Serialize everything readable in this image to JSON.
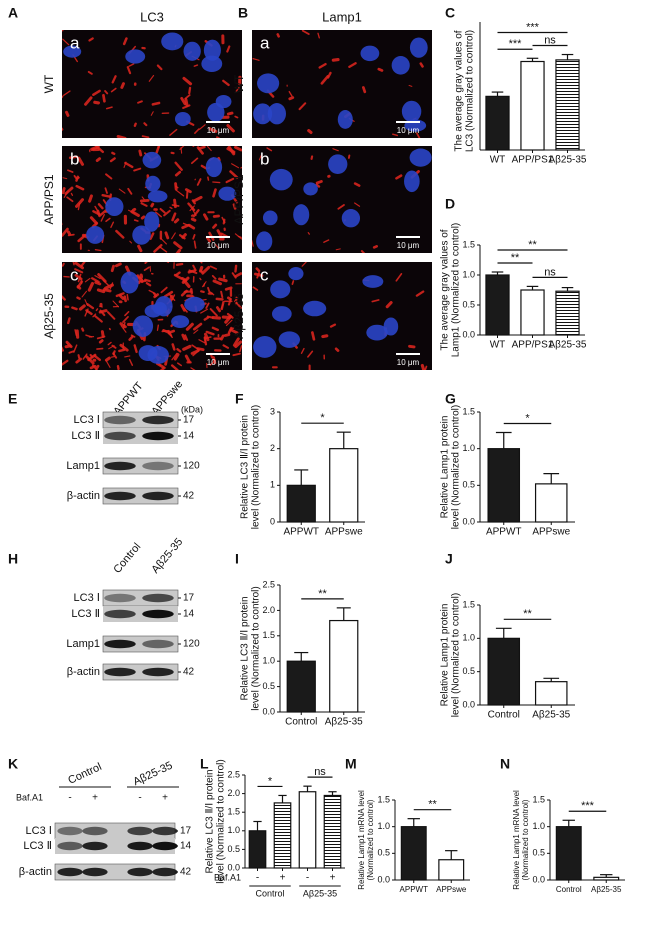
{
  "figure": {
    "micrographs": [
      {
        "panel": "A",
        "title": "LC3",
        "frames": [
          {
            "letter": "a",
            "condition": "WT",
            "scale": "10 μm"
          },
          {
            "letter": "b",
            "condition": "APP/PS1",
            "scale": "10 μm"
          },
          {
            "letter": "c",
            "condition": "Aβ25-35",
            "scale": "10 μm"
          }
        ]
      },
      {
        "panel": "B",
        "title": "Lamp1",
        "frames": [
          {
            "letter": "a",
            "condition": "WT",
            "scale": "10 μm"
          },
          {
            "letter": "b",
            "condition": "APP/PS1",
            "scale": "10 μm"
          },
          {
            "letter": "c",
            "condition": "Aβ25-35",
            "scale": "10 μm"
          }
        ]
      }
    ],
    "blots": [
      {
        "panel": "E",
        "lanes": [
          "APPWT",
          "APPswe"
        ],
        "unit": "(kDa)",
        "bands": [
          {
            "name": "LC3 Ⅰ",
            "kda": 17
          },
          {
            "name": "LC3 Ⅱ",
            "kda": 14
          },
          {
            "name": "Lamp1",
            "kda": 120
          },
          {
            "name": "β-actin",
            "kda": 42
          }
        ]
      },
      {
        "panel": "H",
        "lanes": [
          "Control",
          "Aβ25-35"
        ],
        "bands": [
          {
            "name": "LC3 Ⅰ",
            "kda": 17
          },
          {
            "name": "LC3 Ⅱ",
            "kda": 14
          },
          {
            "name": "Lamp1",
            "kda": 120
          },
          {
            "name": "β-actin",
            "kda": 42
          }
        ]
      },
      {
        "panel": "K",
        "groups": [
          "Control",
          "Aβ25-35"
        ],
        "treatment": "Baf.A1",
        "lanes": [
          "-",
          "+",
          "-",
          "+"
        ],
        "bands": [
          {
            "name": "LC3 Ⅰ",
            "kda": 17
          },
          {
            "name": "LC3 Ⅱ",
            "kda": 14
          },
          {
            "name": "β-actin",
            "kda": 42
          }
        ]
      }
    ]
  },
  "chart_data": [
    {
      "type": "bar",
      "panel": "C",
      "ylabel": [
        "The average gray values of",
        "LC3 (Normalized to control)"
      ],
      "categories": [
        "WT",
        "APP/PS1",
        "Aβ25-35"
      ],
      "values": [
        1.0,
        1.65,
        1.68
      ],
      "errors": [
        0.08,
        0.06,
        0.1
      ],
      "fills": [
        "#1a1a1a",
        "#ffffff",
        "#ffffff"
      ],
      "hatch": [
        false,
        false,
        true
      ],
      "ylim": [
        0,
        2.2
      ],
      "yticks": [],
      "significance": [
        {
          "text": "***",
          "from": 0,
          "to": 1
        },
        {
          "text": "ns",
          "from": 1,
          "to": 2
        },
        {
          "text": "***",
          "from": 0,
          "to": 2
        }
      ]
    },
    {
      "type": "bar",
      "panel": "D",
      "ylabel": [
        "The average gray values of",
        "Lamp1 (Normalized to control)"
      ],
      "categories": [
        "WT",
        "APP/PS1",
        "Aβ25-35"
      ],
      "values": [
        1.0,
        0.75,
        0.73
      ],
      "errors": [
        0.05,
        0.06,
        0.06
      ],
      "fills": [
        "#1a1a1a",
        "#ffffff",
        "#ffffff"
      ],
      "hatch": [
        false,
        false,
        true
      ],
      "ylim": [
        0,
        1.5
      ],
      "yticks": [
        {
          "value": 0,
          "label": "0.0"
        },
        {
          "value": 0.5,
          "label": "0.5"
        },
        {
          "value": 1,
          "label": "1.0"
        },
        {
          "value": 1.5,
          "label": "1.5"
        }
      ],
      "significance": [
        {
          "text": "**",
          "from": 0,
          "to": 1
        },
        {
          "text": "ns",
          "from": 1,
          "to": 2
        },
        {
          "text": "**",
          "from": 0,
          "to": 2
        }
      ]
    },
    {
      "type": "bar",
      "panel": "F",
      "ylabel": [
        "Relative LC3 Ⅱ/Ⅰ protein",
        "level (Normalized to control)"
      ],
      "categories": [
        "APPWT",
        "APPswe"
      ],
      "values": [
        1.0,
        2.0
      ],
      "errors": [
        0.42,
        0.45
      ],
      "fills": [
        "#1a1a1a",
        "#ffffff"
      ],
      "hatch": [
        false,
        false
      ],
      "ylim": [
        0,
        3
      ],
      "yticks": [
        0,
        1,
        2,
        3
      ],
      "significance": [
        {
          "text": "*",
          "from": 0,
          "to": 1
        }
      ]
    },
    {
      "type": "bar",
      "panel": "G",
      "ylabel": [
        "Relative Lamp1 protein",
        "level (Normalized to control)"
      ],
      "categories": [
        "APPWT",
        "APPswe"
      ],
      "values": [
        1.0,
        0.52
      ],
      "errors": [
        0.22,
        0.14
      ],
      "fills": [
        "#1a1a1a",
        "#ffffff"
      ],
      "hatch": [
        false,
        false
      ],
      "ylim": [
        0,
        1.5
      ],
      "yticks": [
        {
          "value": 0,
          "label": "0.0"
        },
        {
          "value": 0.5,
          "label": "0.5"
        },
        {
          "value": 1,
          "label": "1.0"
        },
        {
          "value": 1.5,
          "label": "1.5"
        }
      ],
      "significance": [
        {
          "text": "*",
          "from": 0,
          "to": 1
        }
      ]
    },
    {
      "type": "bar",
      "panel": "I",
      "ylabel": [
        "Relative LC3 Ⅱ/Ⅰ protein",
        "level (Normalized to control)"
      ],
      "categories": [
        "Control",
        "Aβ25-35"
      ],
      "values": [
        1.0,
        1.8
      ],
      "errors": [
        0.17,
        0.25
      ],
      "fills": [
        "#1a1a1a",
        "#ffffff"
      ],
      "hatch": [
        false,
        false
      ],
      "ylim": [
        0,
        2.5
      ],
      "yticks": [
        {
          "value": 0,
          "label": "0.0"
        },
        {
          "value": 0.5,
          "label": "0.5"
        },
        {
          "value": 1,
          "label": "1.0"
        },
        {
          "value": 1.5,
          "label": "1.5"
        },
        {
          "value": 2,
          "label": "2.0"
        },
        {
          "value": 2.5,
          "label": "2.5"
        }
      ],
      "significance": [
        {
          "text": "**",
          "from": 0,
          "to": 1
        }
      ]
    },
    {
      "type": "bar",
      "panel": "J",
      "ylabel": [
        "Relative Lamp1 protein",
        "level (Normalized to control)"
      ],
      "categories": [
        "Control",
        "Aβ25-35"
      ],
      "values": [
        1.0,
        0.35
      ],
      "errors": [
        0.15,
        0.05
      ],
      "fills": [
        "#1a1a1a",
        "#ffffff"
      ],
      "hatch": [
        false,
        false
      ],
      "ylim": [
        0,
        1.5
      ],
      "yticks": [
        {
          "value": 0,
          "label": "0.0"
        },
        {
          "value": 0.5,
          "label": "0.5"
        },
        {
          "value": 1,
          "label": "1.0"
        },
        {
          "value": 1.5,
          "label": "1.5"
        }
      ],
      "significance": [
        {
          "text": "**",
          "from": 0,
          "to": 1
        }
      ]
    },
    {
      "type": "bar",
      "panel": "L",
      "ylabel": [
        "Relative LC3 Ⅱ/Ⅰ protein",
        "level (Normalized to control)"
      ],
      "categories": [
        "-",
        "+",
        "-",
        "+"
      ],
      "groups": [
        "Control",
        "Aβ25-35"
      ],
      "treatment": "Baf.A1",
      "values": [
        1.0,
        1.75,
        2.05,
        1.95
      ],
      "errors": [
        0.25,
        0.2,
        0.15,
        0.1
      ],
      "fills": [
        "#1a1a1a",
        "#ffffff",
        "#ffffff",
        "#ffffff"
      ],
      "hatch": [
        false,
        true,
        false,
        true
      ],
      "ylim": [
        0,
        2.5
      ],
      "yticks": [
        {
          "value": 0,
          "label": "0.0"
        },
        {
          "value": 0.5,
          "label": "0.5"
        },
        {
          "value": 1,
          "label": "1.0"
        },
        {
          "value": 1.5,
          "label": "1.5"
        },
        {
          "value": 2,
          "label": "2.0"
        },
        {
          "value": 2.5,
          "label": "2.5"
        }
      ],
      "significance": [
        {
          "text": "*",
          "from": 0,
          "to": 1
        },
        {
          "text": "ns",
          "from": 2,
          "to": 3
        }
      ]
    },
    {
      "type": "bar",
      "panel": "M",
      "ylabel": [
        "Relative Lamp1 mRNA level",
        "(Normalized to control)"
      ],
      "categories": [
        "APPWT",
        "APPswe"
      ],
      "values": [
        1.0,
        0.38
      ],
      "errors": [
        0.15,
        0.17
      ],
      "fills": [
        "#1a1a1a",
        "#ffffff"
      ],
      "hatch": [
        false,
        false
      ],
      "ylim": [
        0,
        1.5
      ],
      "yticks": [
        {
          "value": 0,
          "label": "0.0"
        },
        {
          "value": 0.5,
          "label": "0.5"
        },
        {
          "value": 1,
          "label": "1.0"
        },
        {
          "value": 1.5,
          "label": "1.5"
        }
      ],
      "significance": [
        {
          "text": "**",
          "from": 0,
          "to": 1
        }
      ]
    },
    {
      "type": "bar",
      "panel": "N",
      "ylabel": [
        "Relative Lamp1 mRNA level",
        "(Normalized to control)"
      ],
      "categories": [
        "Control",
        "Aβ25-35"
      ],
      "values": [
        1.0,
        0.05
      ],
      "errors": [
        0.12,
        0.05
      ],
      "fills": [
        "#1a1a1a",
        "#ffffff"
      ],
      "hatch": [
        false,
        false
      ],
      "ylim": [
        0,
        1.5
      ],
      "yticks": [
        {
          "value": 0,
          "label": "0.0"
        },
        {
          "value": 0.5,
          "label": "0.5"
        },
        {
          "value": 1,
          "label": "1.0"
        },
        {
          "value": 1.5,
          "label": "1.5"
        }
      ],
      "significance": [
        {
          "text": "***",
          "from": 0,
          "to": 1
        }
      ]
    }
  ]
}
